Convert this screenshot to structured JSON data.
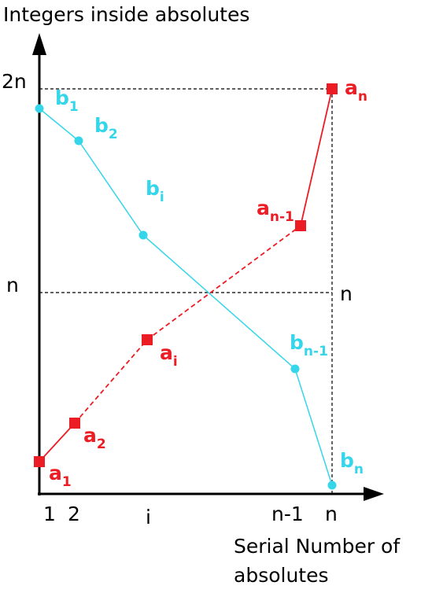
{
  "axes": {
    "y_title": "Integers inside absolutes",
    "x_title": [
      "Serial Number of",
      "absolutes"
    ],
    "y_labels": [
      "2n",
      "n"
    ],
    "x_labels": [
      "1",
      "2",
      "i",
      "n-1",
      "n"
    ],
    "right_label": "n"
  },
  "a_points": [
    {
      "label": "a",
      "sub": "1"
    },
    {
      "label": "a",
      "sub": "2"
    },
    {
      "label": "a",
      "sub": "i"
    },
    {
      "label": "a",
      "sub": "n-1"
    },
    {
      "label": "a",
      "sub": "n"
    }
  ],
  "b_points": [
    {
      "label": "b",
      "sub": "1"
    },
    {
      "label": "b",
      "sub": "2"
    },
    {
      "label": "b",
      "sub": "i"
    },
    {
      "label": "b",
      "sub": "n-1"
    },
    {
      "label": "b",
      "sub": "n"
    }
  ]
}
